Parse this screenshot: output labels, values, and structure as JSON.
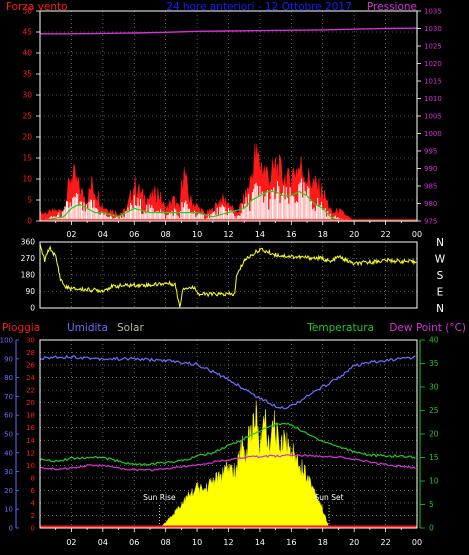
{
  "colors": {
    "background": "#000000",
    "axis_white": "#ffffff",
    "grid_dot": "#9a9a9a",
    "wind": "#ff1a1a",
    "gust_fill": "#ffffff",
    "gust_line": "#1fd41f",
    "pressure": "#d632d6",
    "direction": "#ffff20",
    "rain": "#ff1a1a",
    "humidity": "#6d6dff",
    "solar": "#ffff00",
    "temperature": "#22c922",
    "dewpoint": "#d632d6",
    "title": "#1a1aff"
  },
  "header": {
    "left_label": "Forza vento",
    "title": "24 hore anteriori - 12 Ottobre 2017",
    "right_label": "Pressione"
  },
  "lower_header": {
    "rain": "Pioggia",
    "humidity": "Umidita",
    "solar": "Solar",
    "temperature": "Temperatura",
    "dewpoint": "Dew Point (°C)"
  },
  "time_labels": [
    "02",
    "04",
    "06",
    "08",
    "10",
    "12",
    "14",
    "16",
    "18",
    "20",
    "22",
    "00"
  ],
  "chart_data": [
    {
      "type": "area",
      "name": "wind",
      "title": "24 hore anteriori - 12 Ottobre 2017",
      "ylabel_left": "Forza vento",
      "ylabel_right": "Pressione",
      "x_range_hours": [
        0,
        24
      ],
      "ylim_left": [
        0,
        50
      ],
      "ylim_right": [
        975,
        1035
      ],
      "y_ticks_left": [
        0,
        5,
        10,
        15,
        20,
        25,
        30,
        35,
        40,
        45,
        50
      ],
      "y_ticks_right": [
        975,
        980,
        985,
        990,
        995,
        1000,
        1005,
        1010,
        1015,
        1020,
        1025,
        1030,
        1035
      ],
      "grid": true,
      "series": [
        {
          "kind": "wind_speed_max",
          "x": [
            0.0,
            1.5,
            1.7,
            2.0,
            2.3,
            2.6,
            3.0,
            3.3,
            3.7,
            4.0,
            4.5,
            5.0,
            5.5,
            6.0,
            6.5,
            7.0,
            7.5,
            8.0,
            8.5,
            8.9,
            9.1,
            9.5,
            10.0,
            10.5,
            11.0,
            11.5,
            12.0,
            12.5,
            13.0,
            13.4,
            13.7,
            14.0,
            14.3,
            14.7,
            15.0,
            15.4,
            15.8,
            16.2,
            16.6,
            17.0,
            17.5,
            18.0,
            18.3,
            18.6,
            19.0,
            20.0,
            21.0,
            22.0,
            23.0,
            24.0
          ],
          "values": [
            2,
            3,
            7,
            13,
            11,
            8,
            6,
            10,
            7,
            4,
            3,
            2,
            3,
            10,
            7,
            6,
            8,
            3,
            6,
            3,
            15,
            6,
            4,
            2,
            3,
            6,
            5,
            2,
            6,
            11,
            18,
            16,
            14,
            12,
            15,
            13,
            11,
            14,
            15,
            12,
            10,
            8,
            5,
            2,
            3,
            0,
            0,
            0,
            0,
            0
          ]
        },
        {
          "kind": "wind_gust",
          "x": [
            0.0,
            1.5,
            1.7,
            2.0,
            2.3,
            2.6,
            3.0,
            3.3,
            3.7,
            4.0,
            4.5,
            5.0,
            5.5,
            6.0,
            6.5,
            7.0,
            7.5,
            8.0,
            8.5,
            8.9,
            9.1,
            9.5,
            10.0,
            10.5,
            11.0,
            11.5,
            12.0,
            12.5,
            13.0,
            13.4,
            13.7,
            14.0,
            14.3,
            14.7,
            15.0,
            15.4,
            15.8,
            16.2,
            16.6,
            17.0,
            17.5,
            18.0,
            18.3,
            18.6,
            19.0,
            20.0,
            21.0,
            22.0,
            23.0,
            24.0
          ],
          "values": [
            0,
            2,
            4,
            5,
            6,
            4,
            3,
            5,
            3,
            2,
            1,
            1,
            2,
            5,
            4,
            3,
            4,
            1,
            3,
            1,
            5,
            3,
            2,
            1,
            2,
            3,
            3,
            1,
            4,
            6,
            8,
            7,
            7,
            6,
            8,
            7,
            6,
            7,
            8,
            7,
            5,
            4,
            2,
            1,
            1,
            0,
            0,
            0,
            0,
            0
          ]
        },
        {
          "kind": "wind_average",
          "x": [
            0.0,
            1.5,
            2.0,
            2.5,
            3.0,
            3.5,
            4.0,
            5.0,
            6.0,
            7.0,
            8.0,
            9.0,
            10.0,
            11.0,
            12.0,
            13.0,
            13.5,
            14.0,
            14.5,
            15.0,
            15.5,
            16.0,
            16.5,
            17.0,
            17.5,
            18.0,
            18.5,
            19.0,
            20.0,
            24.0
          ],
          "values": [
            0,
            1,
            3,
            4,
            3,
            2,
            2,
            1,
            3,
            2,
            2,
            2,
            2,
            1,
            2,
            3,
            5,
            6,
            7,
            7,
            6,
            6,
            7,
            6,
            4,
            3,
            1,
            0,
            0,
            0
          ]
        },
        {
          "kind": "pressure",
          "axis": "right",
          "x": [
            0,
            2,
            4,
            6,
            8,
            10,
            12,
            14,
            16,
            18,
            20,
            22,
            24
          ],
          "values": [
            1028.5,
            1028.5,
            1028.6,
            1028.7,
            1028.9,
            1029.2,
            1029.3,
            1029.4,
            1029.5,
            1029.6,
            1029.8,
            1030.0,
            1030.1
          ]
        }
      ]
    },
    {
      "type": "line",
      "name": "wind_direction",
      "x_range_hours": [
        0,
        24
      ],
      "ylim": [
        0,
        360
      ],
      "y_ticks": [
        0,
        90,
        180,
        270,
        360
      ],
      "direction_labels": [
        "N",
        "W",
        "S",
        "E",
        "N"
      ],
      "grid": true,
      "series": [
        {
          "kind": "direction_degrees",
          "x": [
            0.0,
            0.3,
            0.6,
            1.0,
            1.3,
            1.6,
            2.0,
            3.0,
            4.0,
            4.5,
            5.0,
            6.0,
            7.0,
            7.5,
            8.0,
            8.6,
            8.9,
            9.1,
            9.5,
            9.9,
            10.1,
            11.0,
            12.0,
            12.4,
            12.5,
            13.0,
            13.5,
            14.0,
            15.0,
            16.0,
            17.0,
            18.0,
            18.5,
            19.0,
            20.0,
            21.0,
            22.0,
            23.0,
            24.0
          ],
          "values": [
            340,
            260,
            330,
            280,
            160,
            115,
            105,
            100,
            95,
            115,
            120,
            125,
            125,
            130,
            135,
            130,
            5,
            110,
            110,
            110,
            75,
            75,
            75,
            75,
            170,
            260,
            290,
            320,
            290,
            280,
            275,
            270,
            250,
            280,
            240,
            250,
            260,
            255,
            250
          ]
        }
      ]
    },
    {
      "type": "line",
      "name": "rain_humidity_solar_temperature",
      "x_range_hours": [
        0,
        24
      ],
      "ylim_rain": [
        0,
        30
      ],
      "ylim_humidity": [
        0,
        100
      ],
      "ylim_solar": [
        0,
        100
      ],
      "ylim_temperature": [
        0,
        40
      ],
      "y_ticks_rain": [
        0,
        2,
        4,
        6,
        8,
        10,
        12,
        14,
        16,
        18,
        20,
        22,
        24,
        26,
        28,
        30
      ],
      "y_ticks_humidity": [
        0,
        10,
        20,
        30,
        40,
        50,
        60,
        70,
        80,
        90,
        100
      ],
      "y_ticks_temperature": [
        0,
        5,
        10,
        15,
        20,
        25,
        30,
        35,
        40
      ],
      "annotations": [
        {
          "label": "Sun Rise",
          "x": 7.6
        },
        {
          "label": "Sun Set",
          "x": 18.4
        }
      ],
      "grid": true,
      "series": [
        {
          "kind": "rain",
          "x": [
            0,
            24
          ],
          "values": [
            0,
            0
          ]
        },
        {
          "kind": "humidity",
          "x": [
            0,
            1,
            2,
            4,
            6,
            8,
            9,
            10,
            11,
            12,
            13,
            14,
            15,
            15.5,
            16,
            17,
            18,
            19,
            20,
            21,
            22,
            23,
            24
          ],
          "values": [
            90,
            91,
            91,
            90,
            90,
            89,
            88,
            87,
            83,
            79,
            74,
            69,
            65,
            64,
            65,
            70,
            75,
            80,
            86,
            88,
            89,
            90,
            91
          ]
        },
        {
          "kind": "solar",
          "x": [
            0,
            7.6,
            8.0,
            8.5,
            9.0,
            9.5,
            10.0,
            10.5,
            11.0,
            11.5,
            12.0,
            12.5,
            12.9,
            13.1,
            13.3,
            13.6,
            13.8,
            14.0,
            14.3,
            14.6,
            14.9,
            15.2,
            15.5,
            16.0,
            16.5,
            17.0,
            17.5,
            18.0,
            18.4,
            24
          ],
          "values": [
            0,
            0,
            3,
            8,
            13,
            18,
            22,
            21,
            26,
            28,
            33,
            30,
            48,
            36,
            52,
            55,
            63,
            40,
            62,
            42,
            57,
            46,
            49,
            42,
            36,
            29,
            20,
            10,
            0,
            0
          ]
        },
        {
          "kind": "temperature",
          "x": [
            0,
            1,
            2,
            3,
            4,
            5,
            6,
            7,
            8,
            9,
            10,
            11,
            12,
            13,
            14,
            15,
            15.5,
            16,
            17,
            18,
            19,
            20,
            21,
            22,
            23,
            24
          ],
          "values": [
            14.5,
            14.3,
            14.8,
            15.0,
            15.0,
            14.2,
            13.5,
            13.5,
            14.0,
            14.3,
            15.3,
            16.0,
            17.5,
            19.0,
            20.7,
            22.0,
            22.2,
            22.0,
            20.0,
            18.5,
            17.3,
            16.3,
            15.5,
            15.3,
            15.3,
            15.0
          ]
        },
        {
          "kind": "dewpoint",
          "x": [
            0,
            1,
            2,
            3,
            4,
            5,
            6,
            7,
            8,
            9,
            10,
            11,
            12,
            13,
            14,
            15,
            16,
            17,
            18,
            19,
            20,
            21,
            22,
            23,
            24
          ],
          "values": [
            12.8,
            12.5,
            12.8,
            13.3,
            13.3,
            12.7,
            12.4,
            12.3,
            12.6,
            13.0,
            13.5,
            14.0,
            14.5,
            15.0,
            15.2,
            15.3,
            15.5,
            15.4,
            15.3,
            15.1,
            14.6,
            14.0,
            13.5,
            13.1,
            12.7
          ]
        }
      ]
    }
  ]
}
